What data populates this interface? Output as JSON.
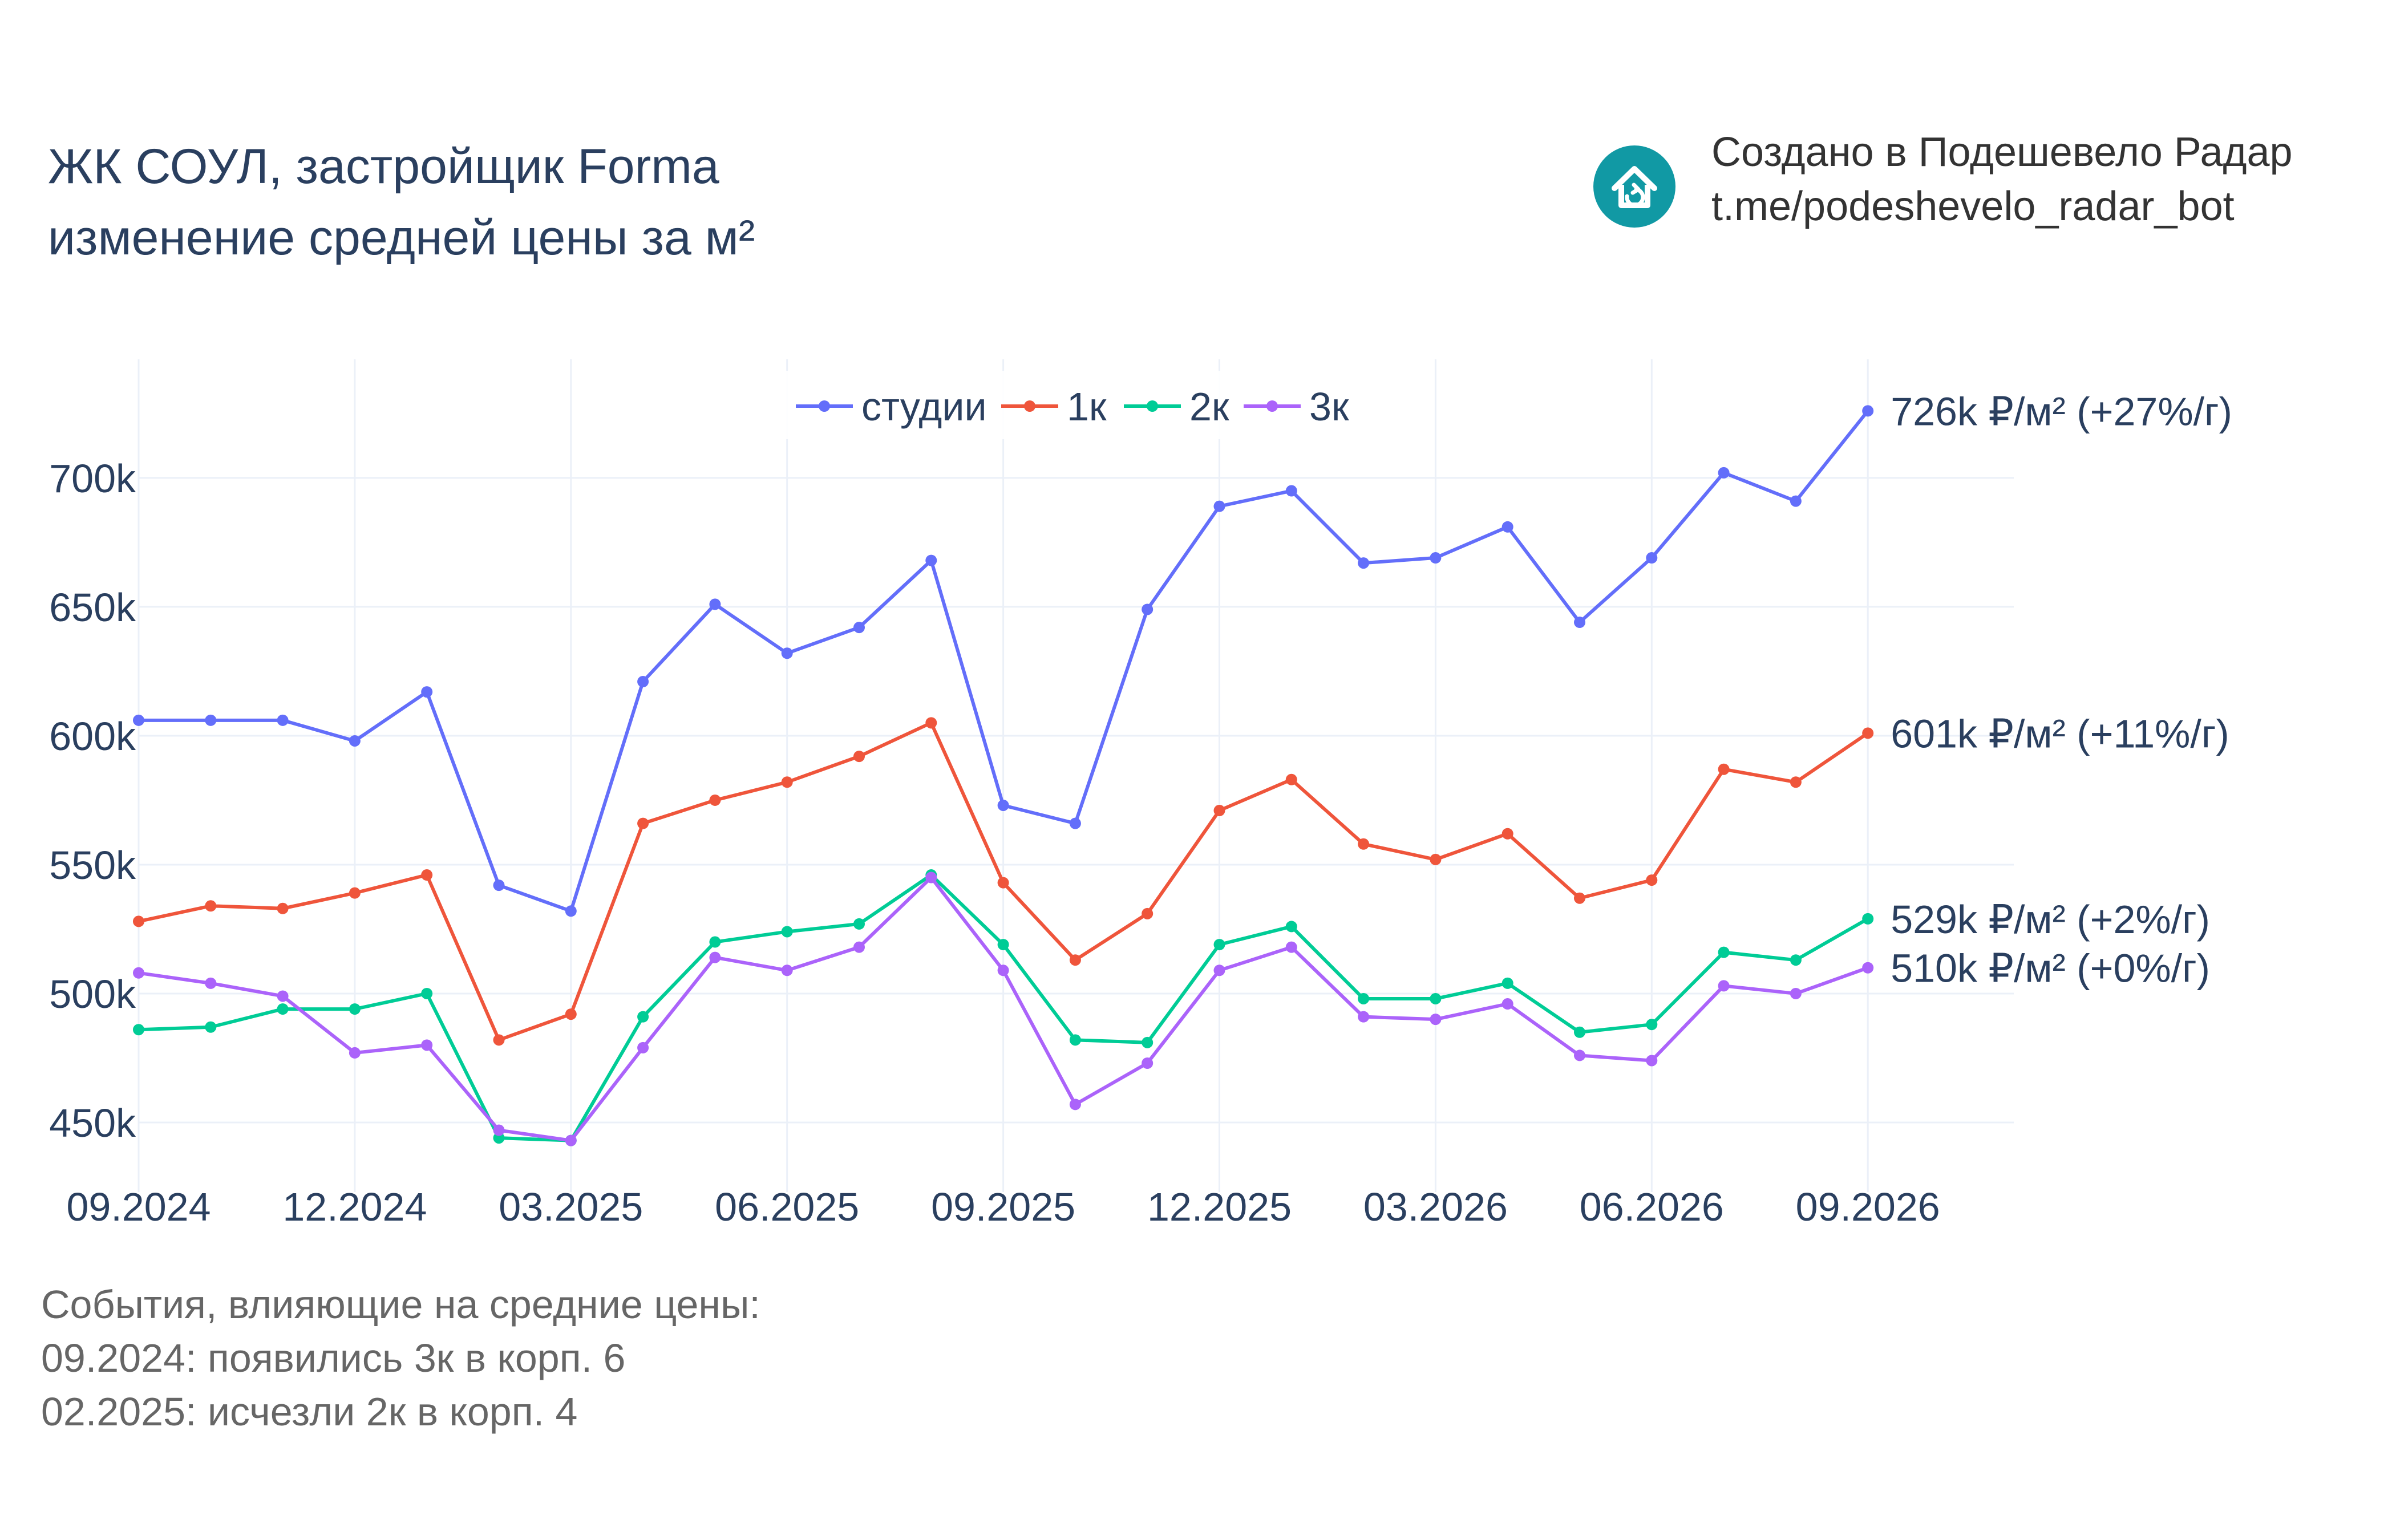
{
  "header": {
    "title_line1": "ЖК СОУЛ, застройщик Forma",
    "title_line2": "изменение средней цены за м²"
  },
  "brand": {
    "line1": "Создано в Подешевело Радар",
    "line2": "t.me/podeshevelo_radar_bot",
    "icon": "house-logo-icon",
    "color": "#1199a4"
  },
  "events": {
    "heading": "События, влияющие на средние цены:",
    "items": [
      "09.2024: появились 3к в корп. 6",
      "02.2025: исчезли 2к в корп. 4"
    ]
  },
  "chart_data": {
    "type": "line",
    "x": [
      "09.2024",
      "10.2024",
      "11.2024",
      "12.2024",
      "01.2025",
      "02.2025",
      "03.2025",
      "04.2025",
      "05.2025",
      "06.2025",
      "07.2025",
      "08.2025",
      "09.2025",
      "10.2025",
      "11.2025",
      "12.2025",
      "01.2026",
      "02.2026",
      "03.2026",
      "04.2026",
      "05.2026",
      "06.2026",
      "07.2026",
      "08.2026",
      "09.2026"
    ],
    "x_ticks": [
      "09.2024",
      "12.2024",
      "03.2025",
      "06.2025",
      "09.2025",
      "12.2025",
      "03.2026",
      "06.2026",
      "09.2026"
    ],
    "y_ticks": [
      450000,
      500000,
      550000,
      600000,
      650000,
      700000
    ],
    "y_tick_labels": [
      "450k",
      "500k",
      "550k",
      "600k",
      "650k",
      "700k"
    ],
    "ylim": [
      423000,
      746000
    ],
    "grid": true,
    "legend_position": "top-center",
    "series": [
      {
        "name": "студии",
        "color": "#636efa",
        "end_label": "726k ₽/м² (+27%/г)",
        "values": [
          606000,
          606000,
          606000,
          598000,
          617000,
          542000,
          532000,
          621000,
          651000,
          632000,
          642000,
          668000,
          573000,
          566000,
          649000,
          689000,
          695000,
          667000,
          669000,
          681000,
          644000,
          669000,
          702000,
          691000,
          726000
        ]
      },
      {
        "name": "1к",
        "color": "#ef553b",
        "end_label": "601k ₽/м² (+11%/г)",
        "values": [
          528000,
          534000,
          533000,
          539000,
          546000,
          482000,
          492000,
          566000,
          575000,
          582000,
          592000,
          605000,
          543000,
          513000,
          531000,
          571000,
          583000,
          558000,
          552000,
          562000,
          537000,
          544000,
          587000,
          582000,
          601000
        ]
      },
      {
        "name": "2к",
        "color": "#00cc96",
        "end_label": "529k ₽/м² (+2%/г)",
        "values": [
          486000,
          487000,
          494000,
          494000,
          500000,
          444000,
          443000,
          491000,
          520000,
          524000,
          527000,
          546000,
          519000,
          482000,
          481000,
          519000,
          526000,
          498000,
          498000,
          504000,
          485000,
          488000,
          516000,
          513000,
          529000
        ]
      },
      {
        "name": "3к",
        "color": "#ab63fa",
        "end_label": "510k ₽/м² (+0%/г)",
        "values": [
          508000,
          504000,
          499000,
          477000,
          480000,
          447000,
          443000,
          479000,
          514000,
          509000,
          518000,
          545000,
          509000,
          457000,
          473000,
          509000,
          518000,
          491000,
          490000,
          496000,
          476000,
          474000,
          503000,
          500000,
          510000
        ]
      }
    ]
  }
}
